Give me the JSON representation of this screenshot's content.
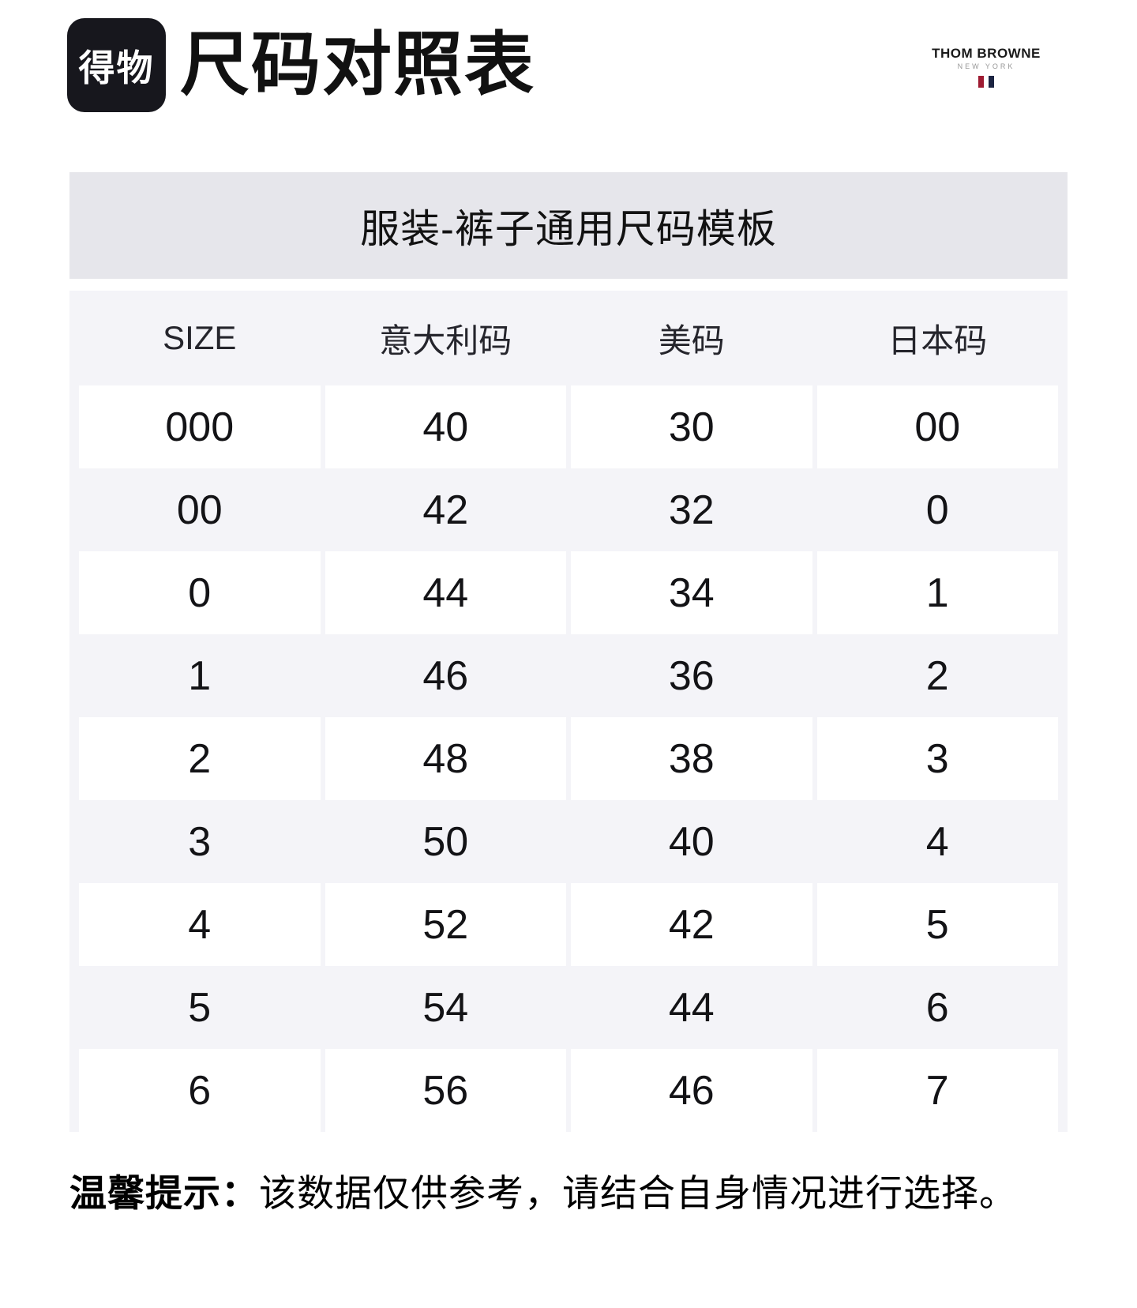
{
  "logo": {
    "text": "得物"
  },
  "title": "尺码对照表",
  "brand": {
    "name": "THOM BROWNE",
    "subtitle": "NEW YORK"
  },
  "banner": "服装-裤子通用尺码模板",
  "table": {
    "headers": [
      "SIZE",
      "意大利码",
      "美码",
      "日本码"
    ],
    "header_keys": [
      "size",
      "italy",
      "us",
      "japan"
    ],
    "rows": [
      [
        "000",
        "40",
        "30",
        "00"
      ],
      [
        "00",
        "42",
        "32",
        "0"
      ],
      [
        "0",
        "44",
        "34",
        "1"
      ],
      [
        "1",
        "46",
        "36",
        "2"
      ],
      [
        "2",
        "48",
        "38",
        "3"
      ],
      [
        "3",
        "50",
        "40",
        "4"
      ],
      [
        "4",
        "52",
        "42",
        "5"
      ],
      [
        "5",
        "54",
        "44",
        "6"
      ],
      [
        "6",
        "56",
        "46",
        "7"
      ]
    ]
  },
  "note": {
    "label": "温馨提示：",
    "text": "该数据仅供参考，请结合自身情况进行选择。"
  },
  "colors": {
    "logo_bg": "#17171d",
    "banner_bg": "#e6e6eb",
    "table_bg": "#f4f4f8",
    "cell_bg": "#ffffff",
    "tb_red": "#9e1b32",
    "tb_navy": "#1c2442",
    "text": "#131316"
  }
}
